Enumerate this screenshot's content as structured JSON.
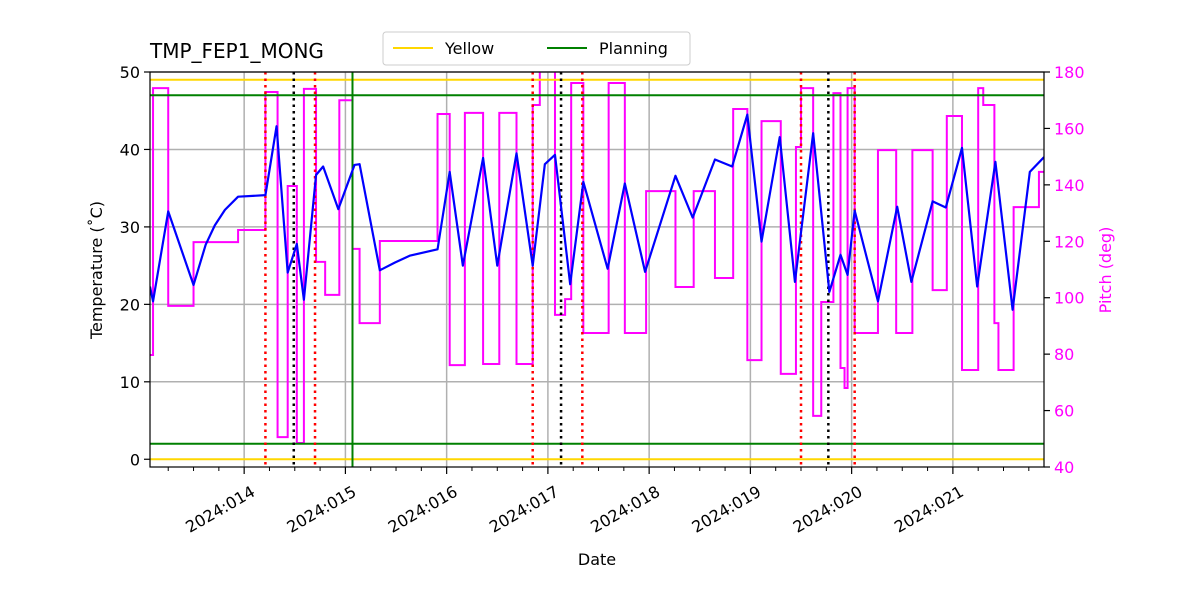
{
  "chart_data": {
    "type": "line",
    "title": "TMP_FEP1_MONG",
    "xlabel": "Date",
    "ylabel": "Temperature ($^\\circ$C)",
    "ylabel_display": "Temperature (˚C)",
    "y2label": "Pitch (deg)",
    "xlim": [
      13.07,
      21.9
    ],
    "ylim": [
      -1,
      50
    ],
    "y2lim": [
      40,
      180
    ],
    "grid": true,
    "legend_placement": "top-center",
    "x_ticks": [
      {
        "value": 14,
        "label": "2024:014"
      },
      {
        "value": 15,
        "label": "2024:015"
      },
      {
        "value": 16,
        "label": "2024:016"
      },
      {
        "value": 17,
        "label": "2024:017"
      },
      {
        "value": 18,
        "label": "2024:018"
      },
      {
        "value": 19,
        "label": "2024:019"
      },
      {
        "value": 20,
        "label": "2024:020"
      },
      {
        "value": 21,
        "label": "2024:021"
      }
    ],
    "y_ticks": [
      0,
      10,
      20,
      30,
      40,
      50
    ],
    "y2_ticks": [
      40,
      60,
      80,
      100,
      120,
      140,
      160,
      180
    ],
    "colors": {
      "temperature": "#0000ff",
      "pitch": "#ff00ff",
      "yellow": "#ffd700",
      "planning": "#008000",
      "red_event": "#ff0000",
      "black_event": "#000000",
      "pitch_axis": "#ff00ff"
    },
    "legend": [
      {
        "name": "Yellow",
        "color": "#ffd700"
      },
      {
        "name": "Planning",
        "color": "#008000"
      }
    ],
    "limit_lines": [
      {
        "type": "Yellow",
        "values": [
          49,
          0
        ]
      },
      {
        "type": "Planning",
        "values": [
          47,
          2
        ]
      }
    ],
    "planning_vertical": [
      15.07
    ],
    "red_dotted_verticals": [
      14.21,
      14.7,
      16.85,
      17.34,
      19.5,
      20.03
    ],
    "black_dotted_verticals": [
      14.49,
      17.13,
      19.77
    ],
    "temperature": [
      [
        13.07,
        22.3
      ],
      [
        13.1,
        20.4
      ],
      [
        13.25,
        32.0
      ],
      [
        13.5,
        22.5
      ],
      [
        13.62,
        27.7
      ],
      [
        13.71,
        30.2
      ],
      [
        13.81,
        32.2
      ],
      [
        13.94,
        33.9
      ],
      [
        14.21,
        34.1
      ],
      [
        14.32,
        43.0
      ],
      [
        14.43,
        24.1
      ],
      [
        14.52,
        27.8
      ],
      [
        14.59,
        20.6
      ],
      [
        14.71,
        36.7
      ],
      [
        14.78,
        37.8
      ],
      [
        14.93,
        32.3
      ],
      [
        15.09,
        38.0
      ],
      [
        15.14,
        38.1
      ],
      [
        15.34,
        24.4
      ],
      [
        15.49,
        25.4
      ],
      [
        15.64,
        26.3
      ],
      [
        15.91,
        27.1
      ],
      [
        16.03,
        37.1
      ],
      [
        16.16,
        25.0
      ],
      [
        16.36,
        38.9
      ],
      [
        16.5,
        25.0
      ],
      [
        16.69,
        39.5
      ],
      [
        16.85,
        25.0
      ],
      [
        16.97,
        38.1
      ],
      [
        17.07,
        39.3
      ],
      [
        17.22,
        22.6
      ],
      [
        17.35,
        35.8
      ],
      [
        17.59,
        24.6
      ],
      [
        17.76,
        35.6
      ],
      [
        17.96,
        24.2
      ],
      [
        18.26,
        36.6
      ],
      [
        18.43,
        31.2
      ],
      [
        18.65,
        38.7
      ],
      [
        18.82,
        37.8
      ],
      [
        18.97,
        44.5
      ],
      [
        19.11,
        28.1
      ],
      [
        19.29,
        41.6
      ],
      [
        19.44,
        22.9
      ],
      [
        19.62,
        42.1
      ],
      [
        19.78,
        21.6
      ],
      [
        19.89,
        26.4
      ],
      [
        19.96,
        23.8
      ],
      [
        20.03,
        32.1
      ],
      [
        20.26,
        20.4
      ],
      [
        20.45,
        32.6
      ],
      [
        20.59,
        22.9
      ],
      [
        20.8,
        33.3
      ],
      [
        20.93,
        32.5
      ],
      [
        21.09,
        40.2
      ],
      [
        21.24,
        22.3
      ],
      [
        21.42,
        38.4
      ],
      [
        21.59,
        19.3
      ],
      [
        21.76,
        37.1
      ],
      [
        21.9,
        39.0
      ]
    ],
    "pitch": [
      [
        13.07,
        79.7
      ],
      [
        13.1,
        174.3
      ],
      [
        13.25,
        97.1
      ],
      [
        13.5,
        119.7
      ],
      [
        13.94,
        124.0
      ],
      [
        14.21,
        172.9
      ],
      [
        14.33,
        50.6
      ],
      [
        14.43,
        139.6
      ],
      [
        14.52,
        48.5
      ],
      [
        14.59,
        174.0
      ],
      [
        14.71,
        112.7
      ],
      [
        14.8,
        101.0
      ],
      [
        14.94,
        170.0
      ],
      [
        15.07,
        117.3
      ],
      [
        15.14,
        91.0
      ],
      [
        15.34,
        120.1
      ],
      [
        15.91,
        165.1
      ],
      [
        16.03,
        76.1
      ],
      [
        16.18,
        165.5
      ],
      [
        16.36,
        76.5
      ],
      [
        16.52,
        165.5
      ],
      [
        16.69,
        76.5
      ],
      [
        16.85,
        168.3
      ],
      [
        16.92,
        181.0
      ],
      [
        17.07,
        93.9
      ],
      [
        17.17,
        99.5
      ],
      [
        17.23,
        176.1
      ],
      [
        17.35,
        87.5
      ],
      [
        17.6,
        176.1
      ],
      [
        17.76,
        87.5
      ],
      [
        17.97,
        137.8
      ],
      [
        18.26,
        103.8
      ],
      [
        18.44,
        137.8
      ],
      [
        18.65,
        107.0
      ],
      [
        18.83,
        166.9
      ],
      [
        18.97,
        77.9
      ],
      [
        19.11,
        162.6
      ],
      [
        19.3,
        73.0
      ],
      [
        19.45,
        153.4
      ],
      [
        19.5,
        174.3
      ],
      [
        19.62,
        58.1
      ],
      [
        19.7,
        98.5
      ],
      [
        19.82,
        172.5
      ],
      [
        19.89,
        75.1
      ],
      [
        19.93,
        68.0
      ],
      [
        19.96,
        174.3
      ],
      [
        20.03,
        87.5
      ],
      [
        20.26,
        152.3
      ],
      [
        20.44,
        87.5
      ],
      [
        20.6,
        152.3
      ],
      [
        20.8,
        102.7
      ],
      [
        20.94,
        164.4
      ],
      [
        21.09,
        74.4
      ],
      [
        21.25,
        174.3
      ],
      [
        21.3,
        168.3
      ],
      [
        21.41,
        91.0
      ],
      [
        21.45,
        74.4
      ],
      [
        21.6,
        132.1
      ],
      [
        21.85,
        144.6
      ],
      [
        21.9,
        144.6
      ]
    ]
  }
}
